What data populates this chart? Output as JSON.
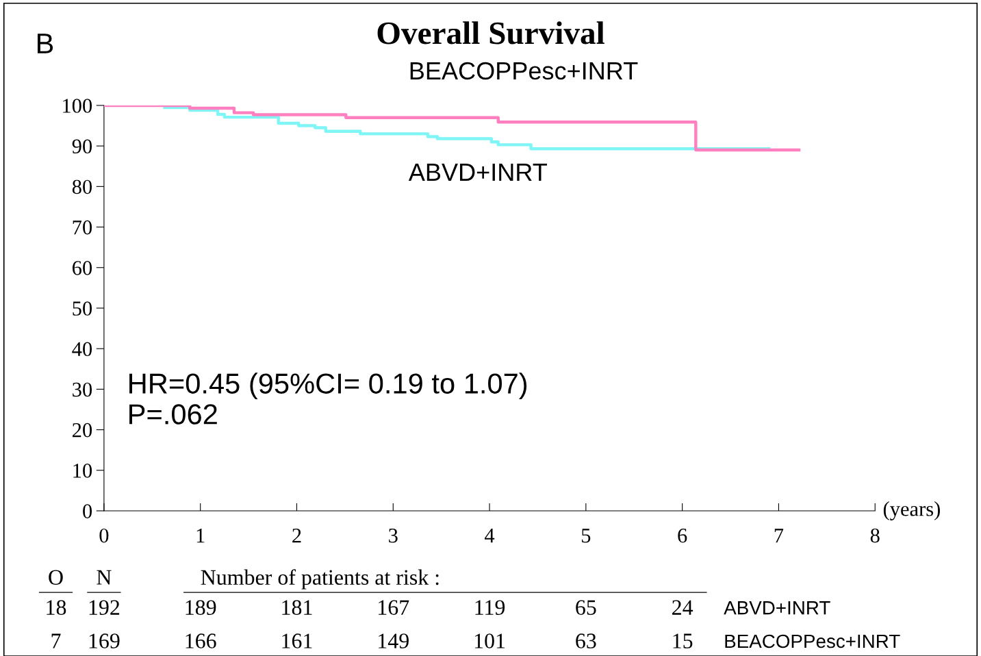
{
  "chart_data": {
    "type": "step",
    "title": "Overall Survival",
    "xlabel": "(years)",
    "xlim": [
      0,
      8
    ],
    "xticks": [
      0,
      1,
      2,
      3,
      4,
      5,
      6,
      7,
      8
    ],
    "ylim": [
      0,
      100
    ],
    "yticks": [
      0,
      10,
      20,
      30,
      40,
      50,
      60,
      70,
      80,
      90,
      100
    ],
    "grid": false,
    "legend": false,
    "marker": "none",
    "line_style": "solid",
    "series": [
      {
        "name": "ABVD+INRT",
        "color": "#80f5f5",
        "x": [
          0.63,
          0.89,
          1.18,
          1.25,
          1.81,
          2.02,
          2.19,
          2.3,
          2.66,
          3.36,
          3.46,
          4.02,
          4.09,
          4.43,
          6.9
        ],
        "values": [
          99.5,
          98.8,
          97.8,
          97.1,
          95.6,
          95.0,
          94.5,
          93.6,
          93.0,
          92.3,
          91.8,
          91.0,
          90.3,
          89.3,
          89.3
        ]
      },
      {
        "name": "BEACOPPesc+INRT",
        "color": "#ff80c0",
        "x": [
          0,
          0.89,
          1.35,
          1.55,
          2.51,
          4.09,
          6.14,
          7.21
        ],
        "values": [
          100,
          99.3,
          98.2,
          97.7,
          97.0,
          95.9,
          89.0,
          89.0
        ]
      }
    ],
    "annotations": [
      "B",
      "HR=0.45 (95%CI= 0.19 to 1.07)\nP=.062",
      "O",
      "N",
      "Number of patients at risk :",
      "18",
      "192",
      "189",
      "181",
      "167",
      "119",
      "65",
      "24",
      "ABVD+INRT",
      "7",
      "169",
      "166",
      "161",
      "149",
      "101",
      "63",
      "15",
      "BEACOPPesc+INRT"
    ]
  }
}
